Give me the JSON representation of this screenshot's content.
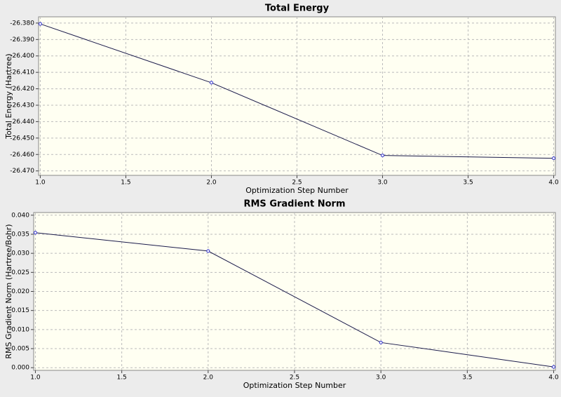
{
  "chart_data": [
    {
      "type": "line",
      "title": "Total Energy",
      "xlabel": "Optimization Step Number",
      "ylabel": "Total Energy (Hartree)",
      "x": [
        1,
        2,
        3,
        4
      ],
      "values": [
        -26.3805,
        -26.4163,
        -26.4606,
        -26.4623
      ],
      "xlim": [
        0.99,
        4.01
      ],
      "ylim": [
        -26.4727,
        -26.3762
      ],
      "xticks": [
        {
          "value": 1,
          "label": "1.0"
        },
        {
          "value": 1.5,
          "label": "1.5"
        },
        {
          "value": 2,
          "label": "2.0"
        },
        {
          "value": 2.5,
          "label": "2.5"
        },
        {
          "value": 3,
          "label": "3.0"
        },
        {
          "value": 3.5,
          "label": "3.5"
        },
        {
          "value": 4,
          "label": "4.0"
        }
      ],
      "yticks": [
        {
          "value": -26.38,
          "label": "-26.380"
        },
        {
          "value": -26.39,
          "label": "-26.390"
        },
        {
          "value": -26.4,
          "label": "-26.400"
        },
        {
          "value": -26.41,
          "label": "-26.410"
        },
        {
          "value": -26.42,
          "label": "-26.420"
        },
        {
          "value": -26.43,
          "label": "-26.430"
        },
        {
          "value": -26.44,
          "label": "-26.440"
        },
        {
          "value": -26.45,
          "label": "-26.450"
        },
        {
          "value": -26.46,
          "label": "-26.460"
        },
        {
          "value": -26.47,
          "label": "-26.470"
        }
      ],
      "color": "#1a1a4a",
      "marker_color": "#3030d0",
      "grid": true
    },
    {
      "type": "line",
      "title": "RMS Gradient Norm",
      "xlabel": "Optimization Step Number",
      "ylabel": "RMS Gradient Norm (Hartree/Bohr)",
      "x": [
        1,
        2,
        3,
        4
      ],
      "values": [
        0.0354,
        0.0306,
        0.0066,
        0.0002
      ],
      "xlim": [
        0.99,
        4.01
      ],
      "ylim": [
        -0.0007,
        0.0407
      ],
      "xticks": [
        {
          "value": 1,
          "label": "1.0"
        },
        {
          "value": 1.5,
          "label": "1.5"
        },
        {
          "value": 2,
          "label": "2.0"
        },
        {
          "value": 2.5,
          "label": "2.5"
        },
        {
          "value": 3,
          "label": "3.0"
        },
        {
          "value": 3.5,
          "label": "3.5"
        },
        {
          "value": 4,
          "label": "4.0"
        }
      ],
      "yticks": [
        {
          "value": 0,
          "label": "0.000"
        },
        {
          "value": 0.005,
          "label": "0.005"
        },
        {
          "value": 0.01,
          "label": "0.010"
        },
        {
          "value": 0.015,
          "label": "0.015"
        },
        {
          "value": 0.02,
          "label": "0.020"
        },
        {
          "value": 0.025,
          "label": "0.025"
        },
        {
          "value": 0.03,
          "label": "0.030"
        },
        {
          "value": 0.035,
          "label": "0.035"
        },
        {
          "value": 0.04,
          "label": "0.040"
        }
      ],
      "color": "#1a1a4a",
      "marker_color": "#3030d0",
      "grid": true
    }
  ]
}
